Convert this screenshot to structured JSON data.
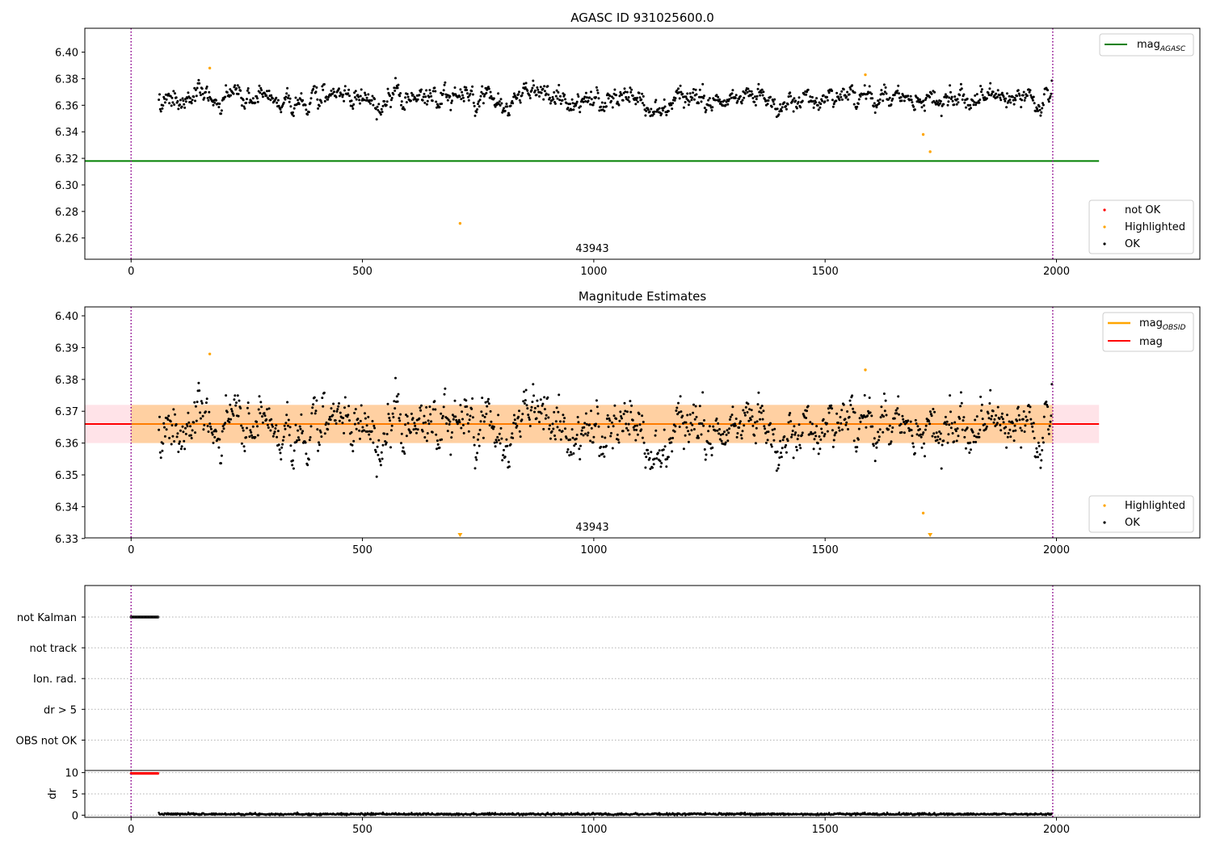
{
  "figure": {
    "background": "#ffffff"
  },
  "chart_data": [
    {
      "id": "agasc",
      "type": "scatter",
      "title": "AGASC ID 931025600.0",
      "xlabel": "",
      "ylabel": "",
      "xlim": [
        -100,
        2310
      ],
      "ylim": [
        6.244,
        6.418
      ],
      "xticks": [
        0,
        500,
        1000,
        1500,
        2000
      ],
      "yticks": [
        6.26,
        6.28,
        6.3,
        6.32,
        6.34,
        6.36,
        6.38,
        6.4
      ],
      "ytick_labels": [
        "6.26",
        "6.28",
        "6.30",
        "6.32",
        "6.34",
        "6.36",
        "6.38",
        "6.40"
      ],
      "vlines": [
        0,
        1992
      ],
      "vline_color": "#8b008b",
      "annotation": {
        "text": "43943",
        "x": 996
      },
      "hlines": [
        {
          "name": "mag",
          "sub": "AGASC",
          "y": 6.318,
          "x0": -100,
          "x1": 2092,
          "color": "#008000"
        }
      ],
      "ok_series": {
        "name": "OK",
        "color": "#000000",
        "x_start": 60,
        "x_end": 1990,
        "count": 1280,
        "base": 6.3655,
        "noise": 0.0045,
        "min": 6.349,
        "max": 6.383
      },
      "highlighted": {
        "name": "Highlighted",
        "color": "#ffa500",
        "points": [
          [
            170,
            6.388
          ],
          [
            711,
            6.271
          ],
          [
            1587,
            6.383
          ],
          [
            1712,
            6.338
          ],
          [
            1727,
            6.325
          ]
        ]
      },
      "not_ok": {
        "name": "not OK",
        "color": "#ff0000",
        "points": []
      },
      "legend_top": {
        "placement": "top-right",
        "entries": [
          {
            "label": "mag",
            "sub": "AGASC",
            "color": "#008000",
            "marker": "line"
          }
        ]
      },
      "legend_bottom": {
        "placement": "lower-right",
        "entries": [
          {
            "label": "not OK",
            "color": "#ff0000",
            "marker": "dot"
          },
          {
            "label": "Highlighted",
            "color": "#ffa500",
            "marker": "dot"
          },
          {
            "label": "OK",
            "color": "#000000",
            "marker": "dot"
          }
        ]
      }
    },
    {
      "id": "estimates",
      "type": "scatter",
      "title": "Magnitude Estimates",
      "xlabel": "",
      "ylabel": "",
      "xlim": [
        -100,
        2310
      ],
      "ylim": [
        6.3302,
        6.4028
      ],
      "xticks": [
        0,
        500,
        1000,
        1500,
        2000
      ],
      "yticks": [
        6.33,
        6.34,
        6.35,
        6.36,
        6.37,
        6.38,
        6.39,
        6.4
      ],
      "ytick_labels": [
        "6.33",
        "6.34",
        "6.35",
        "6.36",
        "6.37",
        "6.38",
        "6.39",
        "6.40"
      ],
      "vlines": [
        0,
        1992
      ],
      "vline_color": "#8b008b",
      "annotation": {
        "text": "43943",
        "x": 996
      },
      "bands": [
        {
          "name": "mag",
          "y0": 6.36,
          "y1": 6.372,
          "x0": -100,
          "x1": 2092,
          "color": "#ffc0cb"
        },
        {
          "name": "mag OBSID",
          "y0": 6.36,
          "y1": 6.372,
          "x0": 0,
          "x1": 1992,
          "color": "#ffa500"
        }
      ],
      "hlines": [
        {
          "name": "mag",
          "y": 6.366,
          "x0": -100,
          "x1": 2092,
          "color": "#ff0000"
        },
        {
          "name": "mag",
          "sub": "OBSID",
          "y": 6.366,
          "x0": 0,
          "x1": 1992,
          "color": "#ffa500"
        }
      ],
      "ok_series": {
        "name": "OK",
        "color": "#000000",
        "x_start": 60,
        "x_end": 1990,
        "count": 1280,
        "base": 6.3655,
        "noise": 0.0045,
        "min": 6.349,
        "max": 6.383
      },
      "highlighted": {
        "name": "Highlighted",
        "color": "#ffa500",
        "points": [
          [
            170,
            6.388
          ],
          [
            1587,
            6.383
          ],
          [
            1712,
            6.338
          ]
        ]
      },
      "clipped_low": {
        "name": "Highlighted",
        "color": "#ffa500",
        "x": [
          711,
          1727
        ]
      },
      "legend_top": {
        "placement": "top-right",
        "entries": [
          {
            "label": "mag",
            "sub": "OBSID",
            "color": "#ffa500",
            "marker": "line"
          },
          {
            "label": "mag",
            "color": "#ff0000",
            "marker": "line"
          }
        ]
      },
      "legend_bottom": {
        "placement": "lower-right",
        "entries": [
          {
            "label": "Highlighted",
            "color": "#ffa500",
            "marker": "dot"
          },
          {
            "label": "OK",
            "color": "#000000",
            "marker": "dot"
          }
        ]
      }
    },
    {
      "id": "flags",
      "type": "scatter",
      "title": "",
      "xlim": [
        -100,
        2310
      ],
      "categories": [
        "not Kalman",
        "not track",
        "Ion. rad.",
        "dr > 5",
        "OBS not OK"
      ],
      "vlines": [
        0,
        1992
      ],
      "vline_color": "#8b008b",
      "flag_points": [
        {
          "category": "not Kalman",
          "x_start": 0,
          "x_end": 58,
          "step": 2,
          "color": "#000000"
        }
      ]
    },
    {
      "id": "dr",
      "type": "scatter",
      "title": "",
      "ylabel": "dr",
      "xlim": [
        -100,
        2310
      ],
      "ylim": [
        -0.5,
        10.5
      ],
      "xticks": [
        0,
        500,
        1000,
        1500,
        2000
      ],
      "yticks": [
        0,
        5,
        10
      ],
      "ytick_labels": [
        "0",
        "5",
        "10"
      ],
      "vlines": [
        0,
        1992
      ],
      "vline_color": "#8b008b",
      "clipped_series": {
        "color": "#ff0000",
        "y": 10,
        "x_start": 0,
        "x_end": 58,
        "step": 2
      },
      "ok_series": {
        "color": "#000000",
        "x_start": 60,
        "x_end": 1990,
        "count": 1400,
        "base": 0.25,
        "noise": 0.12,
        "min": 0.0,
        "max": 0.9
      }
    }
  ]
}
